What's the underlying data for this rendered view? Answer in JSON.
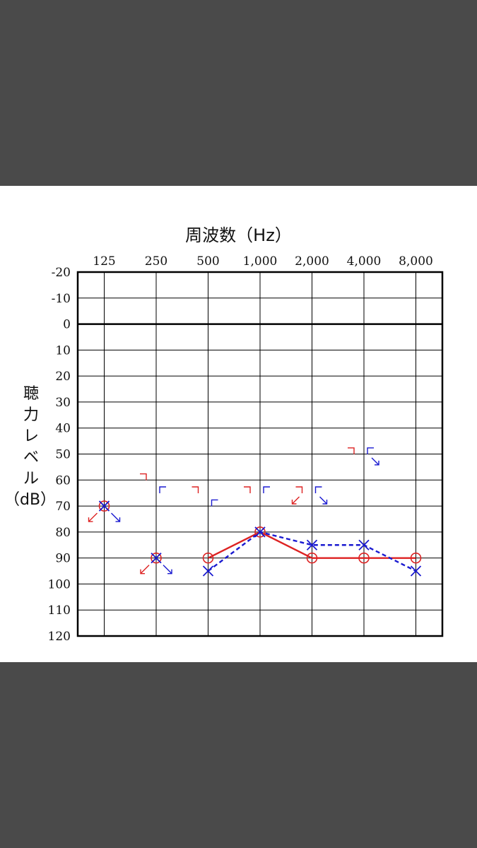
{
  "chart_data": {
    "type": "audiogram",
    "xlabel": "周波数（Hz）",
    "ylabel_vertical": [
      "聴",
      "力",
      "レ",
      "ベ",
      "ル"
    ],
    "ylabel_unit": "（dB）",
    "x_categories": [
      "125",
      "250",
      "500",
      "1,000",
      "2,000",
      "4,000",
      "8,000"
    ],
    "y_ticks": [
      "-20",
      "-10",
      "0",
      "10",
      "20",
      "30",
      "40",
      "50",
      "60",
      "70",
      "80",
      "90",
      "100",
      "110",
      "120"
    ],
    "ylim": [
      -20,
      120
    ],
    "grid": true,
    "colors": {
      "right": "#dd2222",
      "left": "#1a1ad0",
      "axis": "#000000"
    },
    "series": [
      {
        "ear": "right",
        "kind": "air_conduction",
        "marker": "circle",
        "line": "solid",
        "points": [
          {
            "freq": "125",
            "db": 70,
            "no_response": true,
            "connect": false
          },
          {
            "freq": "250",
            "db": 90,
            "no_response": true,
            "connect": false
          },
          {
            "freq": "500",
            "db": 90,
            "no_response": false,
            "connect": true
          },
          {
            "freq": "1,000",
            "db": 80,
            "no_response": false,
            "connect": true
          },
          {
            "freq": "2,000",
            "db": 90,
            "no_response": false,
            "connect": true
          },
          {
            "freq": "4,000",
            "db": 90,
            "no_response": false,
            "connect": true
          },
          {
            "freq": "8,000",
            "db": 90,
            "no_response": false,
            "connect": true
          }
        ]
      },
      {
        "ear": "left",
        "kind": "air_conduction",
        "marker": "x",
        "line": "dashed",
        "points": [
          {
            "freq": "125",
            "db": 70,
            "no_response": true,
            "connect": false
          },
          {
            "freq": "250",
            "db": 90,
            "no_response": true,
            "connect": false
          },
          {
            "freq": "500",
            "db": 95,
            "no_response": false,
            "connect": true
          },
          {
            "freq": "1,000",
            "db": 80,
            "no_response": false,
            "connect": true
          },
          {
            "freq": "2,000",
            "db": 85,
            "no_response": false,
            "connect": true
          },
          {
            "freq": "4,000",
            "db": 85,
            "no_response": false,
            "connect": true
          },
          {
            "freq": "8,000",
            "db": 95,
            "no_response": false,
            "connect": true
          }
        ]
      },
      {
        "ear": "right",
        "kind": "bone_conduction",
        "marker": "bracket-right",
        "points": [
          {
            "freq": "250",
            "db": 59,
            "no_response": false
          },
          {
            "freq": "500",
            "db": 64,
            "no_response": false
          },
          {
            "freq": "1,000",
            "db": 64,
            "no_response": false
          },
          {
            "freq": "2,000",
            "db": 64,
            "no_response": true
          },
          {
            "freq": "4,000",
            "db": 49,
            "no_response": false
          }
        ]
      },
      {
        "ear": "left",
        "kind": "bone_conduction",
        "marker": "bracket-left",
        "points": [
          {
            "freq": "250",
            "db": 64,
            "no_response": false
          },
          {
            "freq": "500",
            "db": 69,
            "no_response": false
          },
          {
            "freq": "1,000",
            "db": 64,
            "no_response": false
          },
          {
            "freq": "2,000",
            "db": 64,
            "no_response": true
          },
          {
            "freq": "4,000",
            "db": 49,
            "no_response": true
          }
        ]
      }
    ]
  }
}
